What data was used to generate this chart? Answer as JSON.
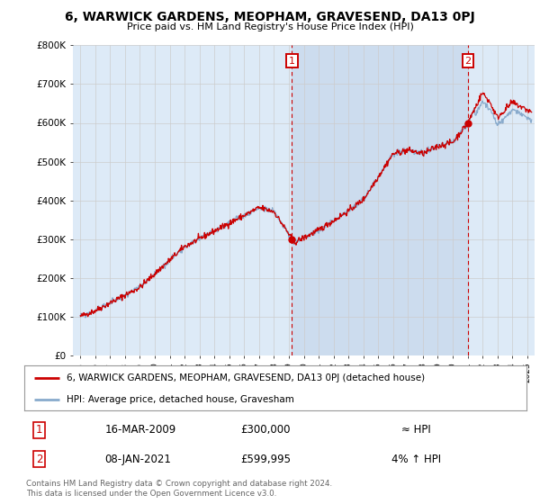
{
  "title": "6, WARWICK GARDENS, MEOPHAM, GRAVESEND, DA13 0PJ",
  "subtitle": "Price paid vs. HM Land Registry's House Price Index (HPI)",
  "ylim": [
    0,
    800000
  ],
  "xlim_start": 1994.5,
  "xlim_end": 2025.5,
  "yticks": [
    0,
    100000,
    200000,
    300000,
    400000,
    500000,
    600000,
    700000,
    800000
  ],
  "ytick_labels": [
    "£0",
    "£100K",
    "£200K",
    "£300K",
    "£400K",
    "£500K",
    "£600K",
    "£700K",
    "£800K"
  ],
  "background_color": "#ffffff",
  "plot_bg_color": "#ddeaf7",
  "shaded_region_color": "#ccdcee",
  "grid_color": "#cccccc",
  "line_color_red": "#cc0000",
  "line_color_blue": "#88aacc",
  "annotation_box_color": "#cc0000",
  "legend_label_red": "6, WARWICK GARDENS, MEOPHAM, GRAVESEND, DA13 0PJ (detached house)",
  "legend_label_blue": "HPI: Average price, detached house, Gravesham",
  "annotation1_date": "16-MAR-2009",
  "annotation1_price": "£300,000",
  "annotation1_hpi": "≈ HPI",
  "annotation2_date": "08-JAN-2021",
  "annotation2_price": "£599,995",
  "annotation2_hpi": "4% ↑ HPI",
  "footnote": "Contains HM Land Registry data © Crown copyright and database right 2024.\nThis data is licensed under the Open Government Licence v3.0.",
  "sale1_x": 2009.21,
  "sale1_y": 300000,
  "sale2_x": 2021.03,
  "sale2_y": 599995
}
